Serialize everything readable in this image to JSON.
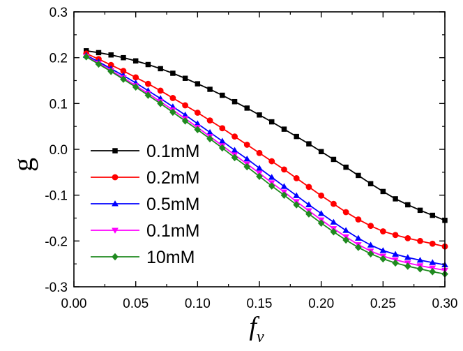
{
  "chart_data": {
    "type": "line",
    "xlabel": "f",
    "xlabel_subscript": "v",
    "ylabel": "g",
    "xlim": [
      0.0,
      0.3
    ],
    "ylim": [
      -0.3,
      0.3
    ],
    "xticks": [
      "0.00",
      "0.05",
      "0.10",
      "0.15",
      "0.20",
      "0.25",
      "0.30"
    ],
    "yticks": [
      "0.3",
      "0.2",
      "0.1",
      "0.0",
      "-0.1",
      "-0.2",
      "-0.3"
    ],
    "grid": false,
    "legend_position": "left",
    "x": [
      0.01,
      0.02,
      0.03,
      0.04,
      0.05,
      0.06,
      0.07,
      0.08,
      0.09,
      0.1,
      0.11,
      0.12,
      0.13,
      0.14,
      0.15,
      0.16,
      0.17,
      0.18,
      0.19,
      0.2,
      0.21,
      0.22,
      0.23,
      0.24,
      0.25,
      0.26,
      0.27,
      0.28,
      0.29,
      0.3
    ],
    "series": [
      {
        "name": "0.1mM",
        "color": "#000000",
        "marker": "square",
        "values": [
          0.215,
          0.211,
          0.206,
          0.2,
          0.193,
          0.185,
          0.176,
          0.166,
          0.155,
          0.143,
          0.131,
          0.118,
          0.104,
          0.09,
          0.075,
          0.06,
          0.044,
          0.028,
          0.012,
          -0.005,
          -0.022,
          -0.039,
          -0.057,
          -0.075,
          -0.092,
          -0.108,
          -0.121,
          -0.133,
          -0.144,
          -0.155
        ]
      },
      {
        "name": "0.2mM",
        "color": "#ff0000",
        "marker": "circle",
        "values": [
          0.209,
          0.197,
          0.184,
          0.171,
          0.157,
          0.143,
          0.128,
          0.112,
          0.096,
          0.08,
          0.063,
          0.046,
          0.028,
          0.01,
          -0.008,
          -0.026,
          -0.044,
          -0.063,
          -0.082,
          -0.101,
          -0.119,
          -0.137,
          -0.153,
          -0.167,
          -0.179,
          -0.187,
          -0.194,
          -0.2,
          -0.206,
          -0.212
        ]
      },
      {
        "name": "0.5mM",
        "color": "#0000ff",
        "marker": "triangle-up",
        "values": [
          0.205,
          0.191,
          0.176,
          0.161,
          0.145,
          0.128,
          0.111,
          0.093,
          0.075,
          0.056,
          0.037,
          0.018,
          -0.002,
          -0.021,
          -0.041,
          -0.061,
          -0.081,
          -0.101,
          -0.121,
          -0.14,
          -0.159,
          -0.177,
          -0.194,
          -0.209,
          -0.221,
          -0.229,
          -0.236,
          -0.242,
          -0.247,
          -0.252
        ]
      },
      {
        "name": "0.1mM",
        "color": "#ff00ff",
        "marker": "triangle-down",
        "values": [
          0.203,
          0.188,
          0.172,
          0.156,
          0.139,
          0.122,
          0.104,
          0.086,
          0.067,
          0.048,
          0.028,
          0.008,
          -0.012,
          -0.032,
          -0.052,
          -0.073,
          -0.093,
          -0.114,
          -0.134,
          -0.154,
          -0.173,
          -0.191,
          -0.208,
          -0.222,
          -0.233,
          -0.241,
          -0.248,
          -0.254,
          -0.259,
          -0.264
        ]
      },
      {
        "name": "10mM",
        "color": "#1f8a1f",
        "marker": "diamond",
        "values": [
          0.202,
          0.186,
          0.17,
          0.153,
          0.136,
          0.118,
          0.1,
          0.081,
          0.062,
          0.043,
          0.023,
          0.003,
          -0.018,
          -0.038,
          -0.059,
          -0.08,
          -0.1,
          -0.121,
          -0.141,
          -0.161,
          -0.18,
          -0.198,
          -0.214,
          -0.228,
          -0.239,
          -0.248,
          -0.255,
          -0.261,
          -0.267,
          -0.272
        ]
      }
    ]
  }
}
